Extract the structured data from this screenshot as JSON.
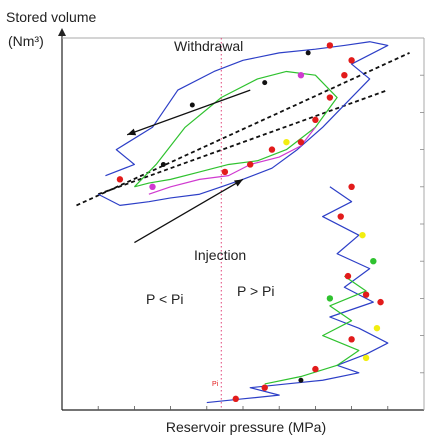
{
  "chart_data": {
    "type": "scatter",
    "title": "",
    "ylabel_line1": "Stored volume",
    "ylabel_line2": "(Nm³)",
    "xlabel": "Reservoir pressure (MPa)",
    "annotations": {
      "withdrawal": "Withdrawal",
      "injection": "Injection",
      "p_less": "P < Pi",
      "p_greater": "P > Pi",
      "pi_marker": "Pi"
    },
    "xlim": [
      0,
      1
    ],
    "ylim": [
      0,
      1
    ],
    "pi_x": 0.44,
    "colors": {
      "blue": "#2d3fc7",
      "green": "#2fc22f",
      "magenta": "#d03ad0",
      "red": "#e21b1b",
      "yellow": "#f2ee10",
      "black": "#111111",
      "pi_line": "#e0457a"
    },
    "series": [
      {
        "color_key": "blue",
        "x": [
          0.12,
          0.2,
          0.15,
          0.25,
          0.32,
          0.42,
          0.5,
          0.6,
          0.7,
          0.78,
          0.85,
          0.9,
          0.8,
          0.85,
          0.78,
          0.72,
          0.65,
          0.58,
          0.5,
          0.44,
          0.38,
          0.3,
          0.24,
          0.16,
          0.1
        ],
        "y": [
          0.63,
          0.66,
          0.7,
          0.76,
          0.86,
          0.91,
          0.94,
          0.96,
          0.97,
          0.98,
          0.99,
          0.98,
          0.93,
          0.89,
          0.82,
          0.76,
          0.7,
          0.65,
          0.62,
          0.6,
          0.58,
          0.57,
          0.56,
          0.55,
          0.58
        ]
      },
      {
        "color_key": "blue",
        "x": [
          0.74,
          0.8,
          0.72,
          0.82,
          0.76,
          0.85,
          0.78,
          0.86,
          0.74,
          0.82,
          0.9,
          0.84,
          0.76,
          0.82,
          0.72,
          0.62,
          0.52,
          0.6,
          0.5,
          0.4
        ],
        "y": [
          0.6,
          0.56,
          0.52,
          0.47,
          0.42,
          0.38,
          0.33,
          0.29,
          0.25,
          0.22,
          0.18,
          0.15,
          0.12,
          0.1,
          0.08,
          0.07,
          0.06,
          0.04,
          0.03,
          0.02
        ]
      },
      {
        "color_key": "green",
        "x": [
          0.2,
          0.26,
          0.34,
          0.44,
          0.54,
          0.62,
          0.7,
          0.76,
          0.7,
          0.62,
          0.54,
          0.46,
          0.38,
          0.3,
          0.24,
          0.2
        ],
        "y": [
          0.6,
          0.66,
          0.76,
          0.84,
          0.89,
          0.91,
          0.9,
          0.84,
          0.76,
          0.7,
          0.67,
          0.66,
          0.64,
          0.62,
          0.61,
          0.6
        ]
      },
      {
        "color_key": "green",
        "x": [
          0.78,
          0.84,
          0.74,
          0.8,
          0.72,
          0.82,
          0.76,
          0.66,
          0.56
        ],
        "y": [
          0.36,
          0.32,
          0.28,
          0.24,
          0.2,
          0.16,
          0.12,
          0.09,
          0.07
        ]
      },
      {
        "color_key": "magenta",
        "x": [
          0.24,
          0.3,
          0.38,
          0.46,
          0.52,
          0.6,
          0.66,
          0.7
        ],
        "y": [
          0.58,
          0.6,
          0.62,
          0.63,
          0.66,
          0.68,
          0.71,
          0.76
        ]
      }
    ],
    "reference_lines": [
      {
        "x": [
          0.04,
          0.96
        ],
        "y": [
          0.55,
          0.96
        ],
        "style": "dashed"
      },
      {
        "x": [
          0.1,
          0.9
        ],
        "y": [
          0.58,
          0.86
        ],
        "style": "dashed"
      }
    ],
    "arrows": [
      {
        "from": [
          0.52,
          0.86
        ],
        "to": [
          0.18,
          0.74
        ]
      },
      {
        "from": [
          0.2,
          0.45
        ],
        "to": [
          0.5,
          0.62
        ]
      }
    ],
    "markers": [
      {
        "x": 0.16,
        "y": 0.62,
        "color_key": "red"
      },
      {
        "x": 0.25,
        "y": 0.6,
        "color_key": "magenta"
      },
      {
        "x": 0.28,
        "y": 0.66,
        "color_key": "black"
      },
      {
        "x": 0.36,
        "y": 0.82,
        "color_key": "black"
      },
      {
        "x": 0.45,
        "y": 0.64,
        "color_key": "red"
      },
      {
        "x": 0.52,
        "y": 0.66,
        "color_key": "red"
      },
      {
        "x": 0.58,
        "y": 0.7,
        "color_key": "red"
      },
      {
        "x": 0.62,
        "y": 0.72,
        "color_key": "yellow"
      },
      {
        "x": 0.66,
        "y": 0.72,
        "color_key": "red"
      },
      {
        "x": 0.7,
        "y": 0.78,
        "color_key": "red"
      },
      {
        "x": 0.74,
        "y": 0.84,
        "color_key": "red"
      },
      {
        "x": 0.78,
        "y": 0.9,
        "color_key": "red"
      },
      {
        "x": 0.8,
        "y": 0.94,
        "color_key": "red"
      },
      {
        "x": 0.68,
        "y": 0.96,
        "color_key": "black"
      },
      {
        "x": 0.74,
        "y": 0.98,
        "color_key": "red"
      },
      {
        "x": 0.66,
        "y": 0.9,
        "color_key": "magenta"
      },
      {
        "x": 0.56,
        "y": 0.88,
        "color_key": "black"
      },
      {
        "x": 0.8,
        "y": 0.6,
        "color_key": "red"
      },
      {
        "x": 0.77,
        "y": 0.52,
        "color_key": "red"
      },
      {
        "x": 0.83,
        "y": 0.47,
        "color_key": "yellow"
      },
      {
        "x": 0.86,
        "y": 0.4,
        "color_key": "green"
      },
      {
        "x": 0.79,
        "y": 0.36,
        "color_key": "red"
      },
      {
        "x": 0.74,
        "y": 0.3,
        "color_key": "green"
      },
      {
        "x": 0.84,
        "y": 0.31,
        "color_key": "red"
      },
      {
        "x": 0.88,
        "y": 0.29,
        "color_key": "red"
      },
      {
        "x": 0.87,
        "y": 0.22,
        "color_key": "yellow"
      },
      {
        "x": 0.8,
        "y": 0.19,
        "color_key": "red"
      },
      {
        "x": 0.84,
        "y": 0.14,
        "color_key": "yellow"
      },
      {
        "x": 0.7,
        "y": 0.11,
        "color_key": "red"
      },
      {
        "x": 0.66,
        "y": 0.08,
        "color_key": "black"
      },
      {
        "x": 0.56,
        "y": 0.06,
        "color_key": "red"
      },
      {
        "x": 0.48,
        "y": 0.03,
        "color_key": "red"
      }
    ]
  }
}
